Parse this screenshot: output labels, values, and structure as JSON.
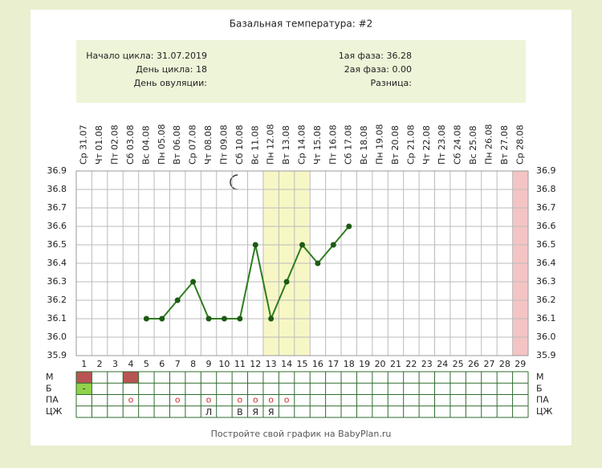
{
  "chart_data": {
    "type": "line",
    "title": "Базальная температура: #2",
    "info": {
      "left": [
        "Начало цикла: 31.07.2019",
        "День цикла: 18",
        "День овуляции:"
      ],
      "right": [
        "1ая фаза: 36.28",
        "2ая фаза: 0.00",
        "Разница:"
      ]
    },
    "categories": [
      "Ср 31.07",
      "Чт 01.08",
      "Пт 02.08",
      "Сб 03.08",
      "Вс 04.08",
      "Пн 05.08",
      "Вт 06.08",
      "Ср 07.08",
      "Чт 08.08",
      "Пт 09.08",
      "Сб 10.08",
      "Вс 11.08",
      "Пн 12.08",
      "Вт 13.08",
      "Ср 14.08",
      "Чт 15.08",
      "Пт 16.08",
      "Сб 17.08",
      "Вс 18.08",
      "Пн 19.08",
      "Вт 20.08",
      "Ср 21.08",
      "Чт 22.08",
      "Пт 23.08",
      "Сб 24.08",
      "Вс 25.08",
      "Пн 26.08",
      "Вт 27.08",
      "Ср 28.08"
    ],
    "day_numbers": [
      1,
      2,
      3,
      4,
      5,
      6,
      7,
      8,
      9,
      10,
      11,
      12,
      13,
      14,
      15,
      16,
      17,
      18,
      19,
      20,
      21,
      22,
      23,
      24,
      25,
      26,
      27,
      28,
      29
    ],
    "values": [
      null,
      null,
      null,
      null,
      36.1,
      36.1,
      36.2,
      36.3,
      36.1,
      36.1,
      36.1,
      36.5,
      36.1,
      36.3,
      36.5,
      36.4,
      36.5,
      36.6,
      null,
      null,
      null,
      null,
      null,
      null,
      null,
      null,
      null,
      null,
      null
    ],
    "color": "#2e7d1e",
    "ylim": [
      35.9,
      36.9
    ],
    "yticks": [
      35.9,
      {
        "value": 36,
        "label": "36.0"
      },
      36.1,
      36.2,
      36.3,
      36.4,
      36.5,
      36.6,
      36.7,
      36.8,
      36.9
    ],
    "grid": true,
    "bands": [
      {
        "from": 13,
        "to": 15,
        "color": "#f7f7c6"
      },
      {
        "from": 29,
        "to": 29,
        "color": "#f4c4c4"
      }
    ],
    "rows": [
      {
        "label": "М",
        "days": [
          1,
          4
        ],
        "color": "#b85454"
      },
      {
        "label": "Б",
        "days": [
          1
        ],
        "color": "#8fd24a",
        "symbol": "-"
      },
      {
        "label": "ПА",
        "days": [
          4,
          7,
          9,
          11,
          12,
          13,
          14
        ],
        "symbol": "о",
        "color": "#d03030"
      },
      {
        "label": "ЦЖ",
        "days": [
          9,
          11,
          12,
          13
        ],
        "labels": [
          "Л",
          "В",
          "Я",
          "Я"
        ]
      }
    ],
    "footer": "Постройте свой график на BabyPlan.ru"
  }
}
